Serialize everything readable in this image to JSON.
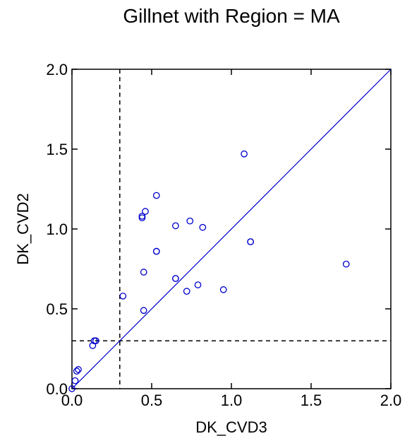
{
  "chart_data": {
    "type": "scatter",
    "title": "Gillnet with Region = MA",
    "xlabel": "DK_CVD3",
    "ylabel": "DK_CVD2",
    "xlim": [
      0,
      2
    ],
    "ylim": [
      0,
      2
    ],
    "xticks": [
      0.0,
      0.5,
      1.0,
      1.5,
      2.0
    ],
    "yticks": [
      0.0,
      0.5,
      1.0,
      1.5,
      2.0
    ],
    "xtick_labels": [
      "0.0",
      "0.5",
      "1.0",
      "1.5",
      "2.0"
    ],
    "ytick_labels": [
      "0.0",
      "0.5",
      "1.0",
      "1.5",
      "2.0"
    ],
    "reference_lines": {
      "identity": true,
      "vertical_x": 0.3,
      "horizontal_y": 0.3
    },
    "grid": false,
    "colors": {
      "points": "#0000cc",
      "identity_line": "#0000cc",
      "reference": "#000000"
    },
    "points": [
      {
        "x": 0.0,
        "y": 0.0
      },
      {
        "x": 0.02,
        "y": 0.05
      },
      {
        "x": 0.03,
        "y": 0.11
      },
      {
        "x": 0.04,
        "y": 0.12
      },
      {
        "x": 0.13,
        "y": 0.27
      },
      {
        "x": 0.14,
        "y": 0.3
      },
      {
        "x": 0.15,
        "y": 0.3
      },
      {
        "x": 0.32,
        "y": 0.58
      },
      {
        "x": 0.45,
        "y": 0.49
      },
      {
        "x": 0.45,
        "y": 0.73
      },
      {
        "x": 0.44,
        "y": 1.08
      },
      {
        "x": 0.44,
        "y": 1.07
      },
      {
        "x": 0.46,
        "y": 1.11
      },
      {
        "x": 0.53,
        "y": 1.21
      },
      {
        "x": 0.53,
        "y": 0.86
      },
      {
        "x": 0.53,
        "y": 0.86
      },
      {
        "x": 0.65,
        "y": 1.02
      },
      {
        "x": 0.65,
        "y": 0.69
      },
      {
        "x": 0.65,
        "y": 0.69
      },
      {
        "x": 0.72,
        "y": 0.61
      },
      {
        "x": 0.74,
        "y": 1.05
      },
      {
        "x": 0.79,
        "y": 0.65
      },
      {
        "x": 0.82,
        "y": 1.01
      },
      {
        "x": 0.95,
        "y": 0.62
      },
      {
        "x": 1.08,
        "y": 1.47
      },
      {
        "x": 1.12,
        "y": 0.92
      },
      {
        "x": 1.12,
        "y": 0.92
      },
      {
        "x": 1.72,
        "y": 0.78
      }
    ]
  }
}
